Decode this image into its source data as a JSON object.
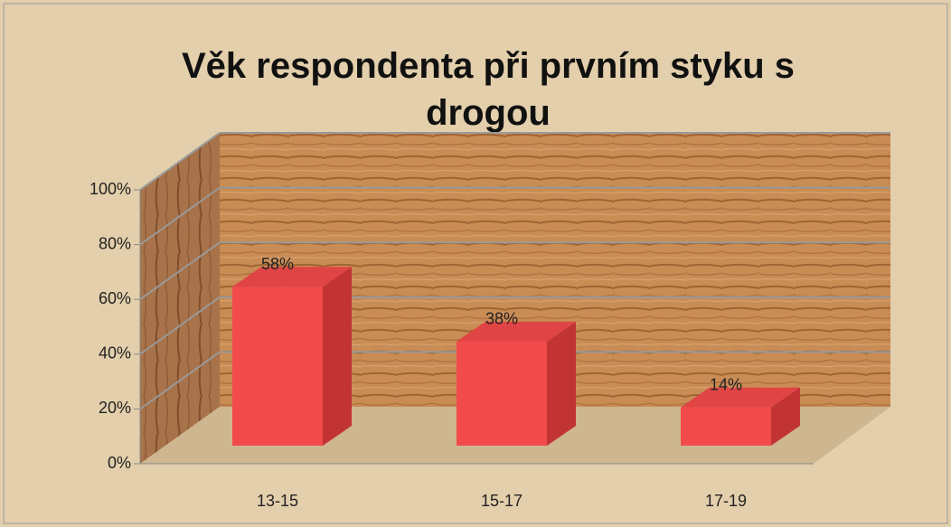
{
  "chart_data": {
    "type": "bar3d",
    "title": "Věk respondenta při prvním styku s drogou",
    "categories": [
      "13-15",
      "15-17",
      "17-19"
    ],
    "values": [
      58,
      38,
      14
    ],
    "value_labels": [
      "58%",
      "38%",
      "14%"
    ],
    "color": "#f24b4b",
    "ylim": [
      0,
      100
    ],
    "yticks": [
      {
        "value": 0,
        "label": "0%"
      },
      {
        "value": 20,
        "label": "20%"
      },
      {
        "value": 40,
        "label": "40%"
      },
      {
        "value": 60,
        "label": "60%"
      },
      {
        "value": 80,
        "label": "80%"
      },
      {
        "value": 100,
        "label": "100%"
      }
    ],
    "grid": true
  }
}
